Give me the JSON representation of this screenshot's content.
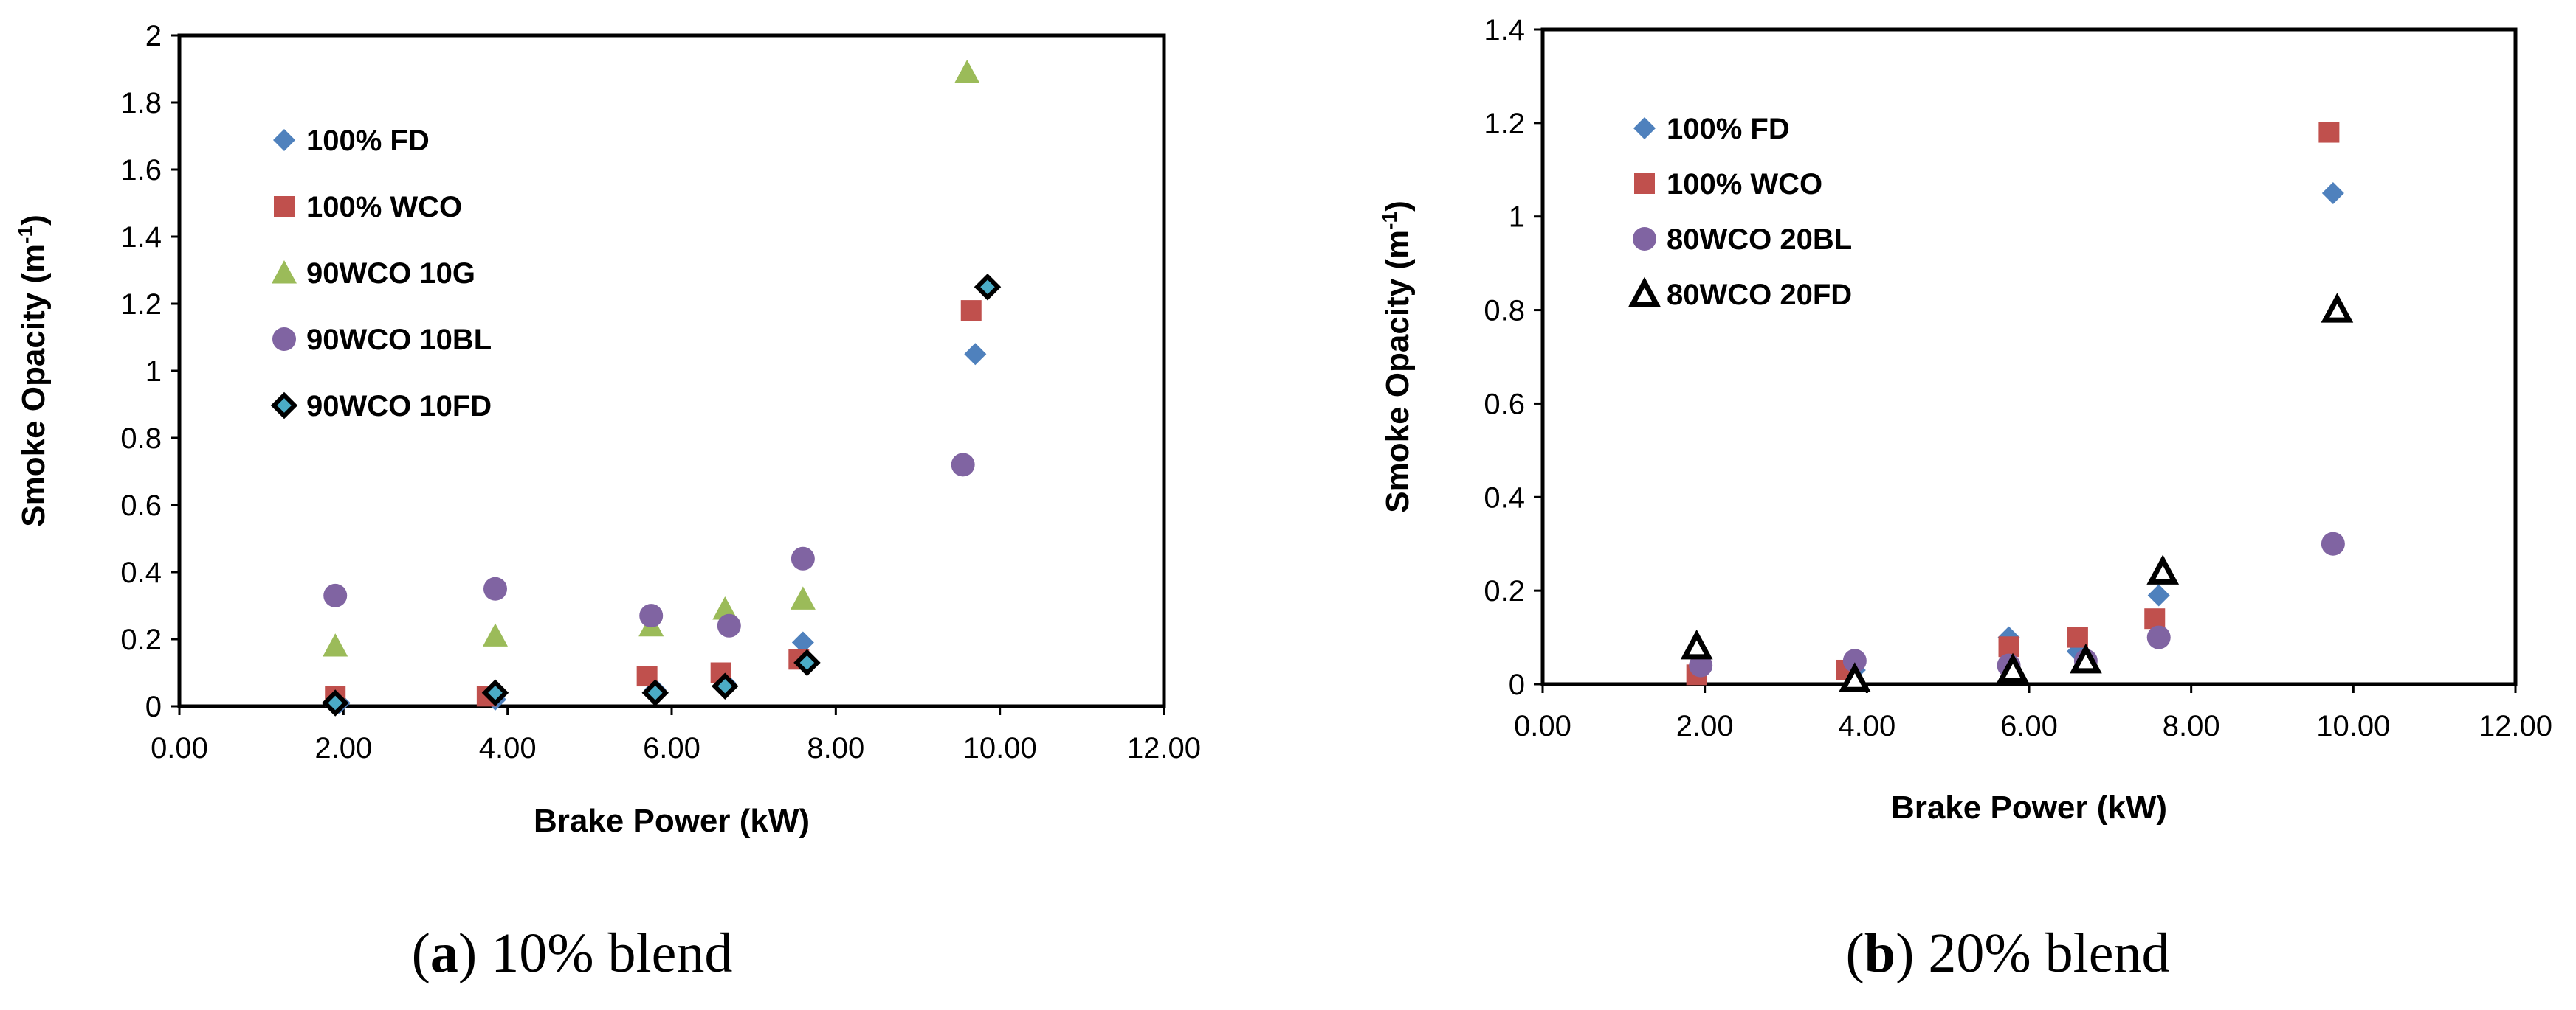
{
  "figure": {
    "captions": [
      {
        "letter": "a",
        "text": "10% blend"
      },
      {
        "letter": "b",
        "text": "20% blend"
      }
    ]
  },
  "chart_data": [
    {
      "type": "scatter",
      "title": "",
      "caption_letter": "a",
      "caption_text": "10% blend",
      "xlabel": "Brake Power (kW)",
      "ylabel": "Smoke Opacity (m",
      "ylabel_sup": "-1",
      "ylabel_close": ")",
      "xlim": [
        0,
        12
      ],
      "ylim": [
        0,
        2
      ],
      "x_ticks": [
        0,
        2,
        4,
        6,
        8,
        10,
        12
      ],
      "x_tick_labels": [
        "0.00",
        "2.00",
        "4.00",
        "6.00",
        "8.00",
        "10.00",
        "12.00"
      ],
      "y_ticks": [
        0,
        0.2,
        0.4,
        0.6,
        0.8,
        1,
        1.2,
        1.4,
        1.6,
        1.8,
        2
      ],
      "y_tick_labels": [
        "0",
        "0.2",
        "0.4",
        "0.6",
        "0.8",
        "1",
        "1.2",
        "1.4",
        "1.6",
        "1.8",
        "2"
      ],
      "grid": false,
      "legend_position": "top-left",
      "series": [
        {
          "name": "100% FD",
          "marker": "diamond",
          "color": "#4f81bd",
          "x": [
            1.95,
            3.85,
            5.8,
            6.65,
            7.6,
            9.7
          ],
          "y": [
            0.01,
            0.02,
            0.05,
            0.07,
            0.19,
            1.05
          ]
        },
        {
          "name": "100% WCO",
          "marker": "square",
          "color": "#c0504d",
          "x": [
            1.9,
            3.75,
            5.7,
            6.6,
            7.55,
            9.65
          ],
          "y": [
            0.03,
            0.03,
            0.09,
            0.1,
            0.14,
            1.18
          ]
        },
        {
          "name": "90WCO 10G",
          "marker": "triangle",
          "color": "#9bbb59",
          "x": [
            1.9,
            3.85,
            5.75,
            6.65,
            7.6,
            9.6
          ],
          "y": [
            0.18,
            0.21,
            0.24,
            0.29,
            0.32,
            1.89
          ]
        },
        {
          "name": "90WCO 10BL",
          "marker": "circle",
          "color": "#8064a2",
          "x": [
            1.9,
            3.85,
            5.75,
            6.7,
            7.6,
            9.55
          ],
          "y": [
            0.33,
            0.35,
            0.27,
            0.24,
            0.44,
            0.72
          ]
        },
        {
          "name": "90WCO 10FD",
          "marker": "diamond-outline",
          "color": "#4bacc6",
          "x": [
            1.9,
            3.85,
            5.8,
            6.65,
            7.65,
            9.85
          ],
          "y": [
            0.01,
            0.04,
            0.04,
            0.06,
            0.13,
            1.25
          ]
        }
      ]
    },
    {
      "type": "scatter",
      "title": "",
      "caption_letter": "b",
      "caption_text": "20% blend",
      "xlabel": "Brake Power (kW)",
      "ylabel": "Smoke Opacity (m",
      "ylabel_sup": "-1",
      "ylabel_close": ")",
      "xlim": [
        0,
        12
      ],
      "ylim": [
        0,
        1.4
      ],
      "x_ticks": [
        0,
        2,
        4,
        6,
        8,
        10,
        12
      ],
      "x_tick_labels": [
        "0.00",
        "2.00",
        "4.00",
        "6.00",
        "8.00",
        "10.00",
        "12.00"
      ],
      "y_ticks": [
        0,
        0.2,
        0.4,
        0.6,
        0.8,
        1,
        1.2,
        1.4
      ],
      "y_tick_labels": [
        "0",
        "0.2",
        "0.4",
        "0.6",
        "0.8",
        "1",
        "1.2",
        "1.4"
      ],
      "grid": false,
      "legend_position": "top-left",
      "series": [
        {
          "name": "100% FD",
          "marker": "diamond",
          "color": "#4f81bd",
          "x": [
            1.95,
            3.85,
            5.75,
            6.6,
            7.6,
            9.75
          ],
          "y": [
            0.03,
            0.03,
            0.1,
            0.07,
            0.19,
            1.05
          ]
        },
        {
          "name": "100% WCO",
          "marker": "square",
          "color": "#c0504d",
          "x": [
            1.9,
            3.75,
            5.75,
            6.6,
            7.55,
            9.7
          ],
          "y": [
            0.02,
            0.03,
            0.08,
            0.1,
            0.14,
            1.18
          ]
        },
        {
          "name": "80WCO 20BL",
          "marker": "circle",
          "color": "#8064a2",
          "x": [
            1.95,
            3.85,
            5.75,
            6.7,
            7.6,
            9.75
          ],
          "y": [
            0.04,
            0.05,
            0.04,
            0.05,
            0.1,
            0.3
          ]
        },
        {
          "name": "80WCO 20FD",
          "marker": "triangle-outline",
          "color": "#000000",
          "x": [
            1.9,
            3.85,
            5.8,
            6.7,
            7.65,
            9.8
          ],
          "y": [
            0.08,
            0.01,
            0.03,
            0.05,
            0.24,
            0.8
          ]
        }
      ]
    }
  ]
}
